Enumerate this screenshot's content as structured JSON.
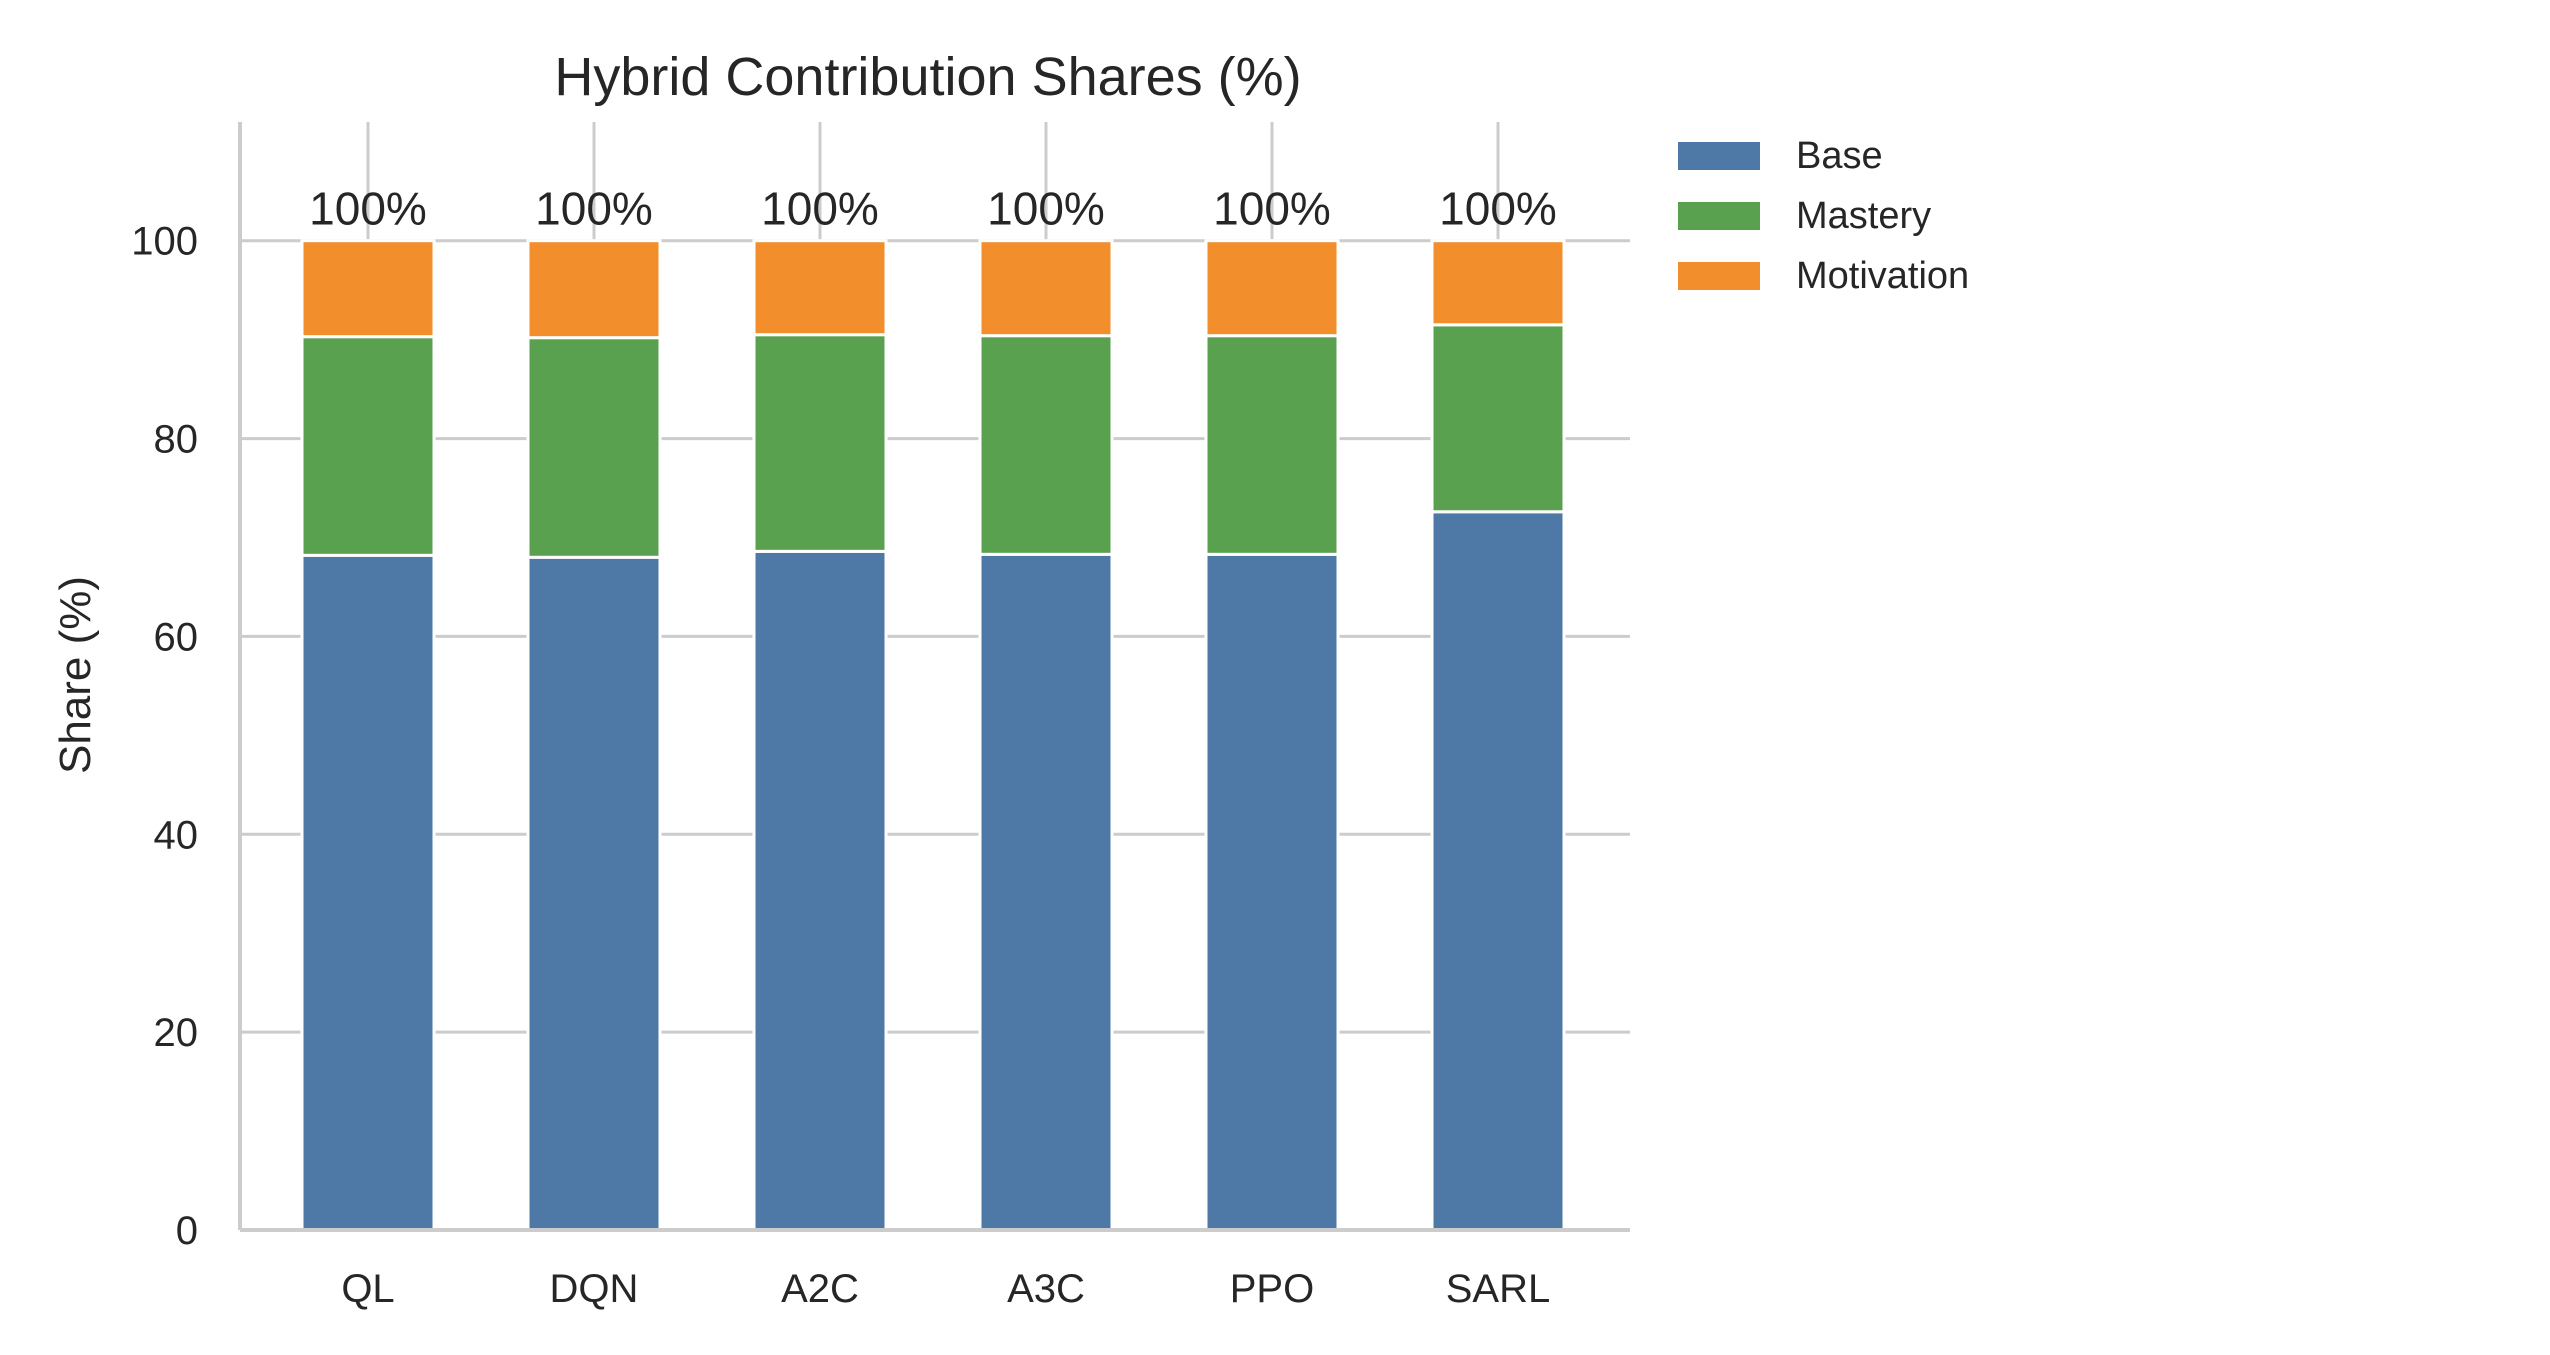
{
  "chart_data": {
    "type": "bar",
    "stacked": true,
    "title": "Hybrid Contribution Shares (%)",
    "xlabel": "",
    "ylabel": "Share (%)",
    "ylim": [
      0,
      112
    ],
    "yticks": [
      0,
      20,
      40,
      60,
      80,
      100
    ],
    "grid": true,
    "legend_position": "outside-top-right",
    "categories": [
      "QL",
      "DQN",
      "A2C",
      "A3C",
      "PPO",
      "SARL"
    ],
    "series": [
      {
        "name": "Base",
        "color": "#4e79a7",
        "values": [
          68.2,
          68.0,
          68.6,
          68.3,
          68.3,
          72.6
        ]
      },
      {
        "name": "Mastery",
        "color": "#59a14f",
        "values": [
          22.1,
          22.2,
          21.9,
          22.1,
          22.1,
          18.9
        ]
      },
      {
        "name": "Motivation",
        "color": "#f28e2b",
        "values": [
          9.7,
          9.8,
          9.5,
          9.6,
          9.6,
          8.5
        ]
      }
    ],
    "total_labels": [
      "100%",
      "100%",
      "100%",
      "100%",
      "100%",
      "100%"
    ]
  }
}
